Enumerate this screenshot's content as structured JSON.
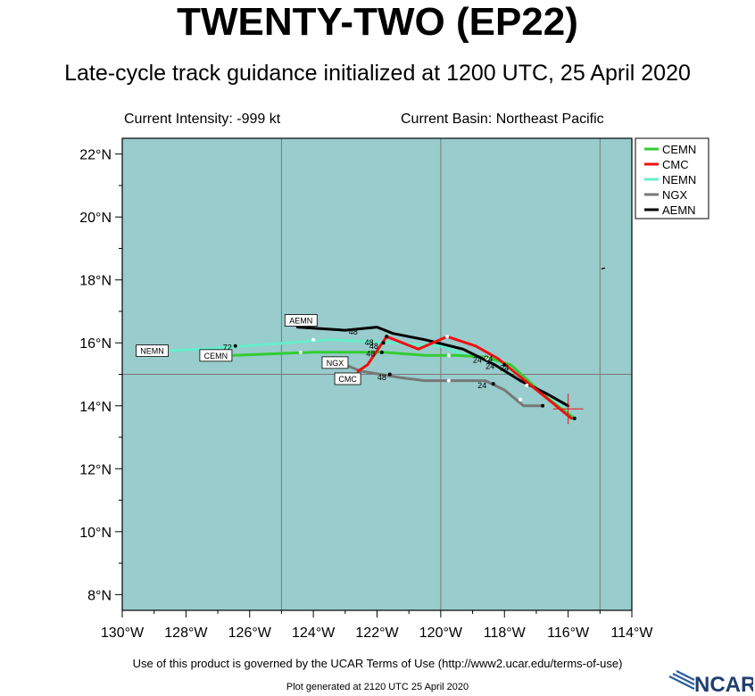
{
  "header": {
    "title": "TWENTY-TWO (EP22)",
    "subtitle": "Late-cycle track guidance initialized at 1200 UTC, 25 April 2020",
    "current_intensity": "Current Intensity: -999 kt",
    "current_basin": "Current Basin: Northeast Pacific"
  },
  "footer": {
    "terms": "Use of this product is governed by the UCAR Terms of Use (http://www2.ucar.edu/terms-of-use)",
    "generated": "Plot generated at 2120 UTC   25 April 2020",
    "logo_text": "NCAR"
  },
  "colors": {
    "ocean": "#99cccc",
    "grid": "#7a7a7a",
    "cemn": "#33cc33",
    "cmc": "#ee1111",
    "nemn": "#66eecc",
    "ngx": "#777777",
    "aemn": "#000000",
    "storm_marker": "#ee1111"
  },
  "chart_data": {
    "type": "line",
    "xlabel": "",
    "ylabel": "",
    "xlim": [
      -130,
      -114
    ],
    "ylim": [
      7.5,
      22.5
    ],
    "x_ticks": [
      -130,
      -128,
      -126,
      -124,
      -122,
      -120,
      -118,
      -116,
      -114
    ],
    "x_tick_labels": [
      "130°W",
      "128°W",
      "126°W",
      "124°W",
      "122°W",
      "120°W",
      "118°W",
      "116°W",
      "114°W"
    ],
    "y_ticks": [
      8,
      10,
      12,
      14,
      16,
      18,
      20,
      22
    ],
    "y_tick_labels": [
      "8°N",
      "10°N",
      "12°N",
      "14°N",
      "16°N",
      "18°N",
      "20°N",
      "22°N"
    ],
    "grid_lon": [
      -125,
      -120,
      -115
    ],
    "grid_lat": [
      15
    ],
    "legend_position": "top-right",
    "storm_position": {
      "lon": -116.0,
      "lat": 13.9
    },
    "land": [
      {
        "lon": -114.9,
        "lat": 18.35
      }
    ],
    "series": [
      {
        "name": "CEMN",
        "color": "#33cc33",
        "points": [
          [
            -115.8,
            13.6
          ],
          [
            -116.6,
            14.2
          ],
          [
            -117.8,
            15.3
          ],
          [
            -118.6,
            15.55
          ],
          [
            -119.5,
            15.6
          ],
          [
            -120.5,
            15.6
          ],
          [
            -121.8,
            15.7
          ],
          [
            -124.0,
            15.7
          ],
          [
            -126.5,
            15.6
          ]
        ],
        "end_label": "CEMN"
      },
      {
        "name": "CMC",
        "color": "#ee1111",
        "points": [
          [
            -115.9,
            13.6
          ],
          [
            -116.5,
            14.1
          ],
          [
            -117.6,
            15.0
          ],
          [
            -118.2,
            15.5
          ],
          [
            -118.9,
            15.9
          ],
          [
            -119.8,
            16.2
          ],
          [
            -120.7,
            15.8
          ],
          [
            -121.7,
            16.2
          ],
          [
            -122.3,
            15.3
          ],
          [
            -122.6,
            15.1
          ]
        ],
        "end_label": "CMC"
      },
      {
        "name": "NEMN",
        "color": "#66eecc",
        "points": [
          [
            -115.9,
            13.7
          ],
          [
            -116.4,
            14.1
          ],
          [
            -117.1,
            14.6
          ],
          [
            -117.6,
            15.0
          ],
          [
            -118.2,
            15.4
          ],
          [
            -119.2,
            15.6
          ],
          [
            -120.0,
            15.9
          ],
          [
            -121.5,
            16.0
          ],
          [
            -123.5,
            16.1
          ],
          [
            -125.5,
            15.95
          ],
          [
            -127.5,
            15.8
          ],
          [
            -128.5,
            15.75
          ]
        ],
        "end_label": "NEMN"
      },
      {
        "name": "NGX",
        "color": "#777777",
        "points": [
          [
            -116.8,
            14.0
          ],
          [
            -117.4,
            14.0
          ],
          [
            -118.0,
            14.5
          ],
          [
            -118.6,
            14.8
          ],
          [
            -119.6,
            14.8
          ],
          [
            -120.5,
            14.8
          ],
          [
            -121.3,
            14.9
          ],
          [
            -122.5,
            15.1
          ],
          [
            -123.0,
            15.3
          ],
          [
            -123.5,
            15.5
          ]
        ],
        "end_label": "NGX"
      },
      {
        "name": "AEMN",
        "color": "#000000",
        "points": [
          [
            -116.0,
            14.0
          ],
          [
            -116.7,
            14.4
          ],
          [
            -117.5,
            14.8
          ],
          [
            -118.3,
            15.3
          ],
          [
            -119.3,
            15.8
          ],
          [
            -120.5,
            16.1
          ],
          [
            -121.5,
            16.3
          ],
          [
            -122.0,
            16.5
          ],
          [
            -123.0,
            16.4
          ],
          [
            -124.5,
            16.5
          ]
        ],
        "end_label": "AEMN"
      }
    ],
    "hour_labels": [
      {
        "text": "24",
        "lon": -118.85,
        "lat": 15.45
      },
      {
        "text": "24",
        "lon": -118.5,
        "lat": 15.5
      },
      {
        "text": "24",
        "lon": -118.45,
        "lat": 15.25
      },
      {
        "text": "24",
        "lon": -118.0,
        "lat": 15.2
      },
      {
        "text": "24",
        "lon": -118.7,
        "lat": 14.65
      },
      {
        "text": "48",
        "lon": -122.1,
        "lat": 15.9
      },
      {
        "text": "48",
        "lon": -122.2,
        "lat": 15.65
      },
      {
        "text": "48",
        "lon": -122.25,
        "lat": 16.0
      },
      {
        "text": "48",
        "lon": -121.85,
        "lat": 14.9
      },
      {
        "text": "48",
        "lon": -122.75,
        "lat": 16.35
      },
      {
        "text": "72",
        "lon": -126.7,
        "lat": 15.85
      }
    ],
    "hour_dots": [
      {
        "lon": -118.55,
        "lat": 15.5,
        "color": "#ffffff"
      },
      {
        "lon": -119.75,
        "lat": 15.6,
        "color": "#ffffff"
      },
      {
        "lon": -119.75,
        "lat": 14.8,
        "color": "#ffffff"
      },
      {
        "lon": -119.8,
        "lat": 16.2,
        "color": "#ffffff"
      },
      {
        "lon": -124.0,
        "lat": 16.1,
        "color": "#ffffff"
      },
      {
        "lon": -124.4,
        "lat": 15.7,
        "color": "#ffffff"
      },
      {
        "lon": -117.5,
        "lat": 14.2,
        "color": "#ffffff"
      },
      {
        "lon": -117.3,
        "lat": 14.65,
        "color": "#ffffff"
      },
      {
        "lon": -118.0,
        "lat": 15.3,
        "color": "#000000"
      },
      {
        "lon": -121.8,
        "lat": 16.0,
        "color": "#000000"
      },
      {
        "lon": -121.85,
        "lat": 15.7,
        "color": "#000000"
      },
      {
        "lon": -121.7,
        "lat": 16.2,
        "color": "#000000"
      },
      {
        "lon": -126.45,
        "lat": 15.9,
        "color": "#000000"
      },
      {
        "lon": -118.35,
        "lat": 14.7,
        "color": "#000000"
      },
      {
        "lon": -121.6,
        "lat": 15.0,
        "color": "#000000"
      },
      {
        "lon": -116.8,
        "lat": 14.0,
        "color": "#000000"
      },
      {
        "lon": -115.8,
        "lat": 13.6,
        "color": "#000000"
      }
    ]
  }
}
